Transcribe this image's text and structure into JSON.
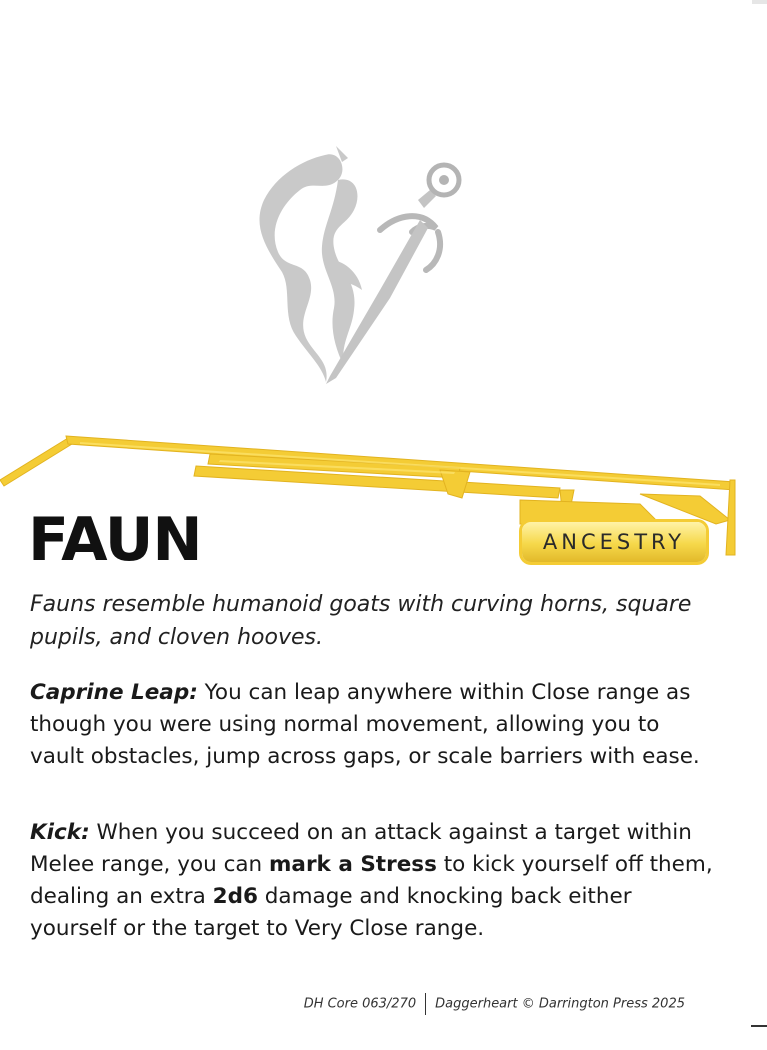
{
  "card": {
    "name": "FAUN",
    "type_label": "ANCESTRY",
    "description": "Fauns resemble humanoid goats with curving horns, square pupils, and cloven hooves.",
    "features": [
      {
        "name": "Caprine Leap:",
        "text": "You can leap anywhere within Close range as though you were using normal movement, allowing you to vault obstacles, jump across gaps, or scale barriers with ease."
      },
      {
        "name": "Kick:",
        "text_1": "When you succeed on an attack against a target within Melee range, you can",
        "highlight_1": "mark a Stress",
        "text_2": "to kick yourself off them, dealing an extra",
        "highlight_2": "2d6",
        "text_3": "damage and knocking back either yourself or the target to Very Close range."
      }
    ]
  },
  "footer": {
    "card_code": "DH Core 063/270",
    "copyright": "Daggerheart © Darrington Press 2025"
  },
  "art": {
    "icon": "faun-emblem-icon",
    "color": "#cfcfcf"
  },
  "colors": {
    "gold": "#f4cc35",
    "gold_dark": "#e0b020",
    "text": "#1a1a1a"
  }
}
